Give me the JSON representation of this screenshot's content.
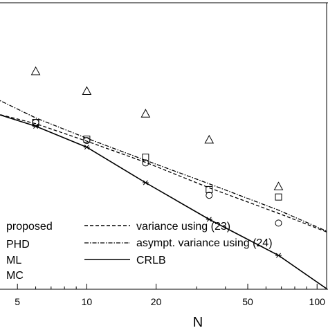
{
  "chart_data": {
    "type": "line",
    "title": "",
    "xlabel": "N",
    "ylabel": "",
    "x_scale": "log",
    "xlim": [
      4.2,
      110
    ],
    "ylim": [
      0,
      1
    ],
    "grid": false,
    "x_ticks": [
      5,
      10,
      20,
      50,
      100
    ],
    "x_tick_labels": [
      "5",
      "10",
      "20",
      "50",
      "100"
    ],
    "series": [
      {
        "name": "variance using (23)",
        "style": "dashed",
        "marker": "none",
        "x": [
          4,
          6,
          10,
          18,
          34,
          68,
          110
        ],
        "y": [
          0.614,
          0.578,
          0.517,
          0.443,
          0.354,
          0.265,
          0.2
        ]
      },
      {
        "name": "asympt. variance using (24)",
        "style": "dash-dot",
        "marker": "none",
        "x": [
          4,
          6,
          10,
          18,
          34,
          68,
          110
        ],
        "y": [
          0.667,
          0.598,
          0.527,
          0.45,
          0.368,
          0.276,
          0.203
        ]
      },
      {
        "name": "CRLB",
        "style": "solid",
        "marker": "none",
        "x": [
          4,
          6,
          10,
          18,
          34,
          68,
          110
        ],
        "y": [
          0.614,
          0.569,
          0.496,
          0.372,
          0.244,
          0.118,
          0.002
        ]
      },
      {
        "name": "",
        "style": "none",
        "marker": "star",
        "x": [
          6,
          10,
          18,
          34,
          68
        ],
        "y": [
          0.569,
          0.496,
          0.372,
          0.244,
          0.118
        ]
      },
      {
        "name": "",
        "style": "none",
        "marker": "circle",
        "x": [
          6,
          10,
          18,
          34,
          68
        ],
        "y": [
          0.582,
          0.519,
          0.441,
          0.328,
          0.231
        ]
      },
      {
        "name": "",
        "style": "none",
        "marker": "square",
        "x": [
          6,
          10,
          18,
          34,
          68
        ],
        "y": [
          0.582,
          0.524,
          0.461,
          0.348,
          0.322
        ]
      },
      {
        "name": "",
        "style": "none",
        "marker": "triangle",
        "x": [
          6,
          10,
          18,
          34,
          68
        ],
        "y": [
          0.761,
          0.692,
          0.613,
          0.522,
          0.359
        ]
      }
    ],
    "legend_left": [
      "proposed",
      "PHD",
      "ML",
      "MC"
    ],
    "legend_right": [
      {
        "label": "variance using (23)",
        "style": "dashed"
      },
      {
        "label": "asympt. variance using (24)",
        "style": "dash-dot"
      },
      {
        "label": "CRLB",
        "style": "solid"
      }
    ],
    "legend_position": "bottom"
  }
}
